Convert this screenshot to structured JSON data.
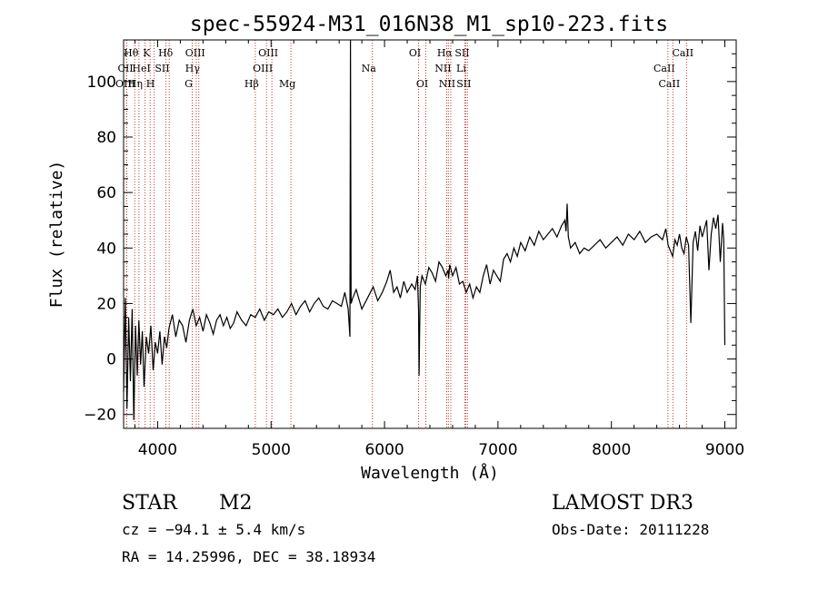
{
  "chart_data": {
    "type": "line",
    "title": "spec-55924-M31_016N38_M1_sp10-223.fits",
    "xlabel": "Wavelength (Å)",
    "ylabel": "Flux (relative)",
    "xlim": [
      3700,
      9100
    ],
    "ylim": [
      -25,
      115
    ],
    "x_ticks": [
      4000,
      5000,
      6000,
      7000,
      8000,
      9000
    ],
    "x_tick_labels": [
      "4000",
      "5000",
      "6000",
      "7000",
      "8000",
      "9000"
    ],
    "y_ticks": [
      -20,
      0,
      20,
      40,
      60,
      80,
      100
    ],
    "y_tick_labels": [
      "−20",
      "0",
      "20",
      "40",
      "60",
      "80",
      "100"
    ],
    "grid": false,
    "series": [
      {
        "name": "flux",
        "x": [
          3700,
          3715,
          3730,
          3745,
          3760,
          3775,
          3790,
          3805,
          3820,
          3835,
          3850,
          3865,
          3880,
          3900,
          3920,
          3940,
          3960,
          3980,
          4000,
          4020,
          4040,
          4060,
          4080,
          4100,
          4130,
          4160,
          4190,
          4220,
          4250,
          4280,
          4310,
          4340,
          4370,
          4400,
          4430,
          4460,
          4490,
          4520,
          4550,
          4580,
          4610,
          4640,
          4670,
          4700,
          4740,
          4780,
          4820,
          4860,
          4900,
          4940,
          4980,
          5020,
          5060,
          5100,
          5140,
          5180,
          5220,
          5260,
          5300,
          5340,
          5380,
          5420,
          5460,
          5500,
          5540,
          5580,
          5620,
          5650,
          5680,
          5695,
          5700,
          5705,
          5720,
          5750,
          5800,
          5850,
          5900,
          5940,
          5980,
          6020,
          6050,
          6080,
          6110,
          6140,
          6170,
          6200,
          6240,
          6270,
          6290,
          6300,
          6305,
          6310,
          6315,
          6330,
          6360,
          6390,
          6420,
          6450,
          6480,
          6510,
          6540,
          6560,
          6565,
          6575,
          6600,
          6630,
          6660,
          6690,
          6720,
          6750,
          6780,
          6810,
          6840,
          6870,
          6900,
          6930,
          6960,
          6990,
          7020,
          7050,
          7080,
          7110,
          7140,
          7170,
          7200,
          7240,
          7280,
          7320,
          7360,
          7400,
          7440,
          7480,
          7520,
          7560,
          7590,
          7600,
          7610,
          7620,
          7640,
          7680,
          7720,
          7760,
          7800,
          7850,
          7900,
          7950,
          8000,
          8050,
          8100,
          8150,
          8200,
          8250,
          8300,
          8350,
          8400,
          8450,
          8480,
          8500,
          8520,
          8540,
          8560,
          8580,
          8600,
          8620,
          8640,
          8660,
          8680,
          8700,
          8720,
          8740,
          8760,
          8780,
          8800,
          8820,
          8840,
          8860,
          8880,
          8900,
          8920,
          8940,
          8960,
          8980,
          8990,
          9000
        ],
        "y": [
          -12,
          22,
          -18,
          15,
          -8,
          18,
          -22,
          12,
          -6,
          14,
          -2,
          10,
          -10,
          8,
          2,
          12,
          -4,
          6,
          2,
          10,
          -2,
          8,
          4,
          11,
          16,
          8,
          14,
          12,
          6,
          14,
          18,
          12,
          15,
          10,
          16,
          13,
          9,
          14,
          16,
          12,
          15,
          11,
          13,
          17,
          14,
          12,
          16,
          15,
          18,
          14,
          17,
          16,
          18,
          15,
          17,
          20,
          16,
          19,
          21,
          17,
          20,
          22,
          19,
          18,
          21,
          20,
          19,
          24,
          18,
          8,
          115,
          20,
          22,
          25,
          18,
          22,
          26,
          21,
          24,
          28,
          32,
          24,
          26,
          22,
          28,
          24,
          27,
          25,
          30,
          18,
          -6,
          12,
          26,
          30,
          27,
          33,
          31,
          28,
          35,
          33,
          30,
          32,
          29,
          34,
          30,
          33,
          27,
          28,
          24,
          27,
          22,
          26,
          24,
          30,
          34,
          27,
          32,
          30,
          28,
          36,
          38,
          35,
          40,
          37,
          42,
          39,
          44,
          41,
          46,
          43,
          45,
          47,
          44,
          48,
          50,
          46,
          56,
          44,
          40,
          42,
          38,
          40,
          39,
          41,
          43,
          40,
          42,
          44,
          41,
          45,
          43,
          46,
          42,
          44,
          45,
          43,
          47,
          41,
          39,
          37,
          43,
          41,
          45,
          40,
          38,
          44,
          41,
          13,
          42,
          46,
          39,
          48,
          44,
          47,
          50,
          32,
          45,
          51,
          47,
          52,
          35,
          49,
          43,
          5
        ]
      }
    ],
    "line_markers": [
      {
        "label": "Hθ",
        "x": 3798,
        "row": 0
      },
      {
        "label": "CII",
        "x": 3727,
        "row": 1
      },
      {
        "label": "OIII",
        "x": 3727,
        "row": 2
      },
      {
        "label": "K",
        "x": 3934,
        "row": 0
      },
      {
        "label": "HeI",
        "x": 3889,
        "row": 1
      },
      {
        "label": "Hη",
        "x": 3835,
        "row": 2
      },
      {
        "label": "Hδ",
        "x": 4102,
        "row": 0
      },
      {
        "label": "SII",
        "x": 4072,
        "row": 1
      },
      {
        "label": "H",
        "x": 3969,
        "row": 2
      },
      {
        "label": "OIII",
        "x": 4363,
        "row": 0
      },
      {
        "label": "Hγ",
        "x": 4340,
        "row": 1
      },
      {
        "label": "G",
        "x": 4305,
        "row": 2
      },
      {
        "label": "OIII",
        "x": 5007,
        "row": 0
      },
      {
        "label": "OIII",
        "x": 4959,
        "row": 1
      },
      {
        "label": "Hβ",
        "x": 4861,
        "row": 2
      },
      {
        "label": "Mg",
        "x": 5175,
        "row": 2
      },
      {
        "label": "Na",
        "x": 5893,
        "row": 1
      },
      {
        "label": "OI",
        "x": 6300,
        "row": 0
      },
      {
        "label": "OI",
        "x": 6364,
        "row": 2
      },
      {
        "label": "Hα",
        "x": 6563,
        "row": 0
      },
      {
        "label": "SII",
        "x": 6716,
        "row": 0
      },
      {
        "label": "NII",
        "x": 6548,
        "row": 1
      },
      {
        "label": "Li",
        "x": 6708,
        "row": 1
      },
      {
        "label": "NII",
        "x": 6584,
        "row": 2
      },
      {
        "label": "SII",
        "x": 6731,
        "row": 2
      },
      {
        "label": "CaII",
        "x": 8662,
        "row": 0
      },
      {
        "label": "CaII",
        "x": 8498,
        "row": 1
      },
      {
        "label": "CaII",
        "x": 8542,
        "row": 2
      }
    ]
  },
  "info": {
    "class_label": "STAR",
    "subclass": "M2",
    "survey": "LAMOST DR3",
    "velocity": "cz = −94.1 ± 5.4 km/s",
    "obs_date": "Obs-Date: 20111228",
    "coordinates": "RA =  14.25996, DEC =  38.18934"
  }
}
